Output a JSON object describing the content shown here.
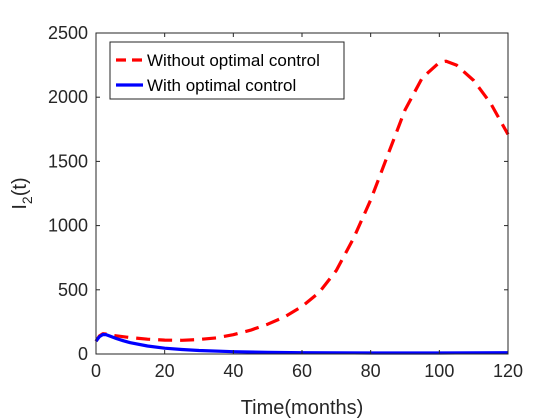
{
  "chart_data": {
    "type": "line",
    "title": "",
    "xlabel": "Time(months)",
    "ylabel_main": "I",
    "ylabel_sub": "2",
    "ylabel_tail": "(t)",
    "xlim": [
      0,
      120
    ],
    "ylim": [
      0,
      2500
    ],
    "xticks": [
      0,
      20,
      40,
      60,
      80,
      100,
      120
    ],
    "yticks": [
      0,
      500,
      1000,
      1500,
      2000,
      2500
    ],
    "grid": false,
    "legend_position": "top-left",
    "series": [
      {
        "name": "Without optimal control",
        "color": "#ff0000",
        "style": "dashed",
        "x": [
          0,
          1,
          2,
          3,
          5,
          10,
          15,
          20,
          25,
          30,
          35,
          40,
          45,
          50,
          55,
          60,
          65,
          70,
          75,
          80,
          85,
          90,
          95,
          100,
          102,
          105,
          110,
          115,
          120
        ],
        "y": [
          100,
          140,
          158,
          155,
          145,
          128,
          115,
          108,
          107,
          113,
          125,
          150,
          185,
          232,
          290,
          370,
          480,
          650,
          900,
          1200,
          1550,
          1900,
          2150,
          2270,
          2280,
          2250,
          2130,
          1950,
          1710
        ]
      },
      {
        "name": "With optimal control",
        "color": "#0000ff",
        "style": "solid",
        "x": [
          0,
          1,
          2,
          3,
          4,
          6,
          8,
          10,
          15,
          20,
          25,
          30,
          40,
          50,
          60,
          70,
          80,
          90,
          100,
          110,
          120
        ],
        "y": [
          100,
          135,
          152,
          150,
          140,
          120,
          103,
          88,
          62,
          45,
          35,
          27,
          18,
          13,
          10,
          9,
          8,
          8,
          8,
          9,
          10
        ]
      }
    ]
  }
}
